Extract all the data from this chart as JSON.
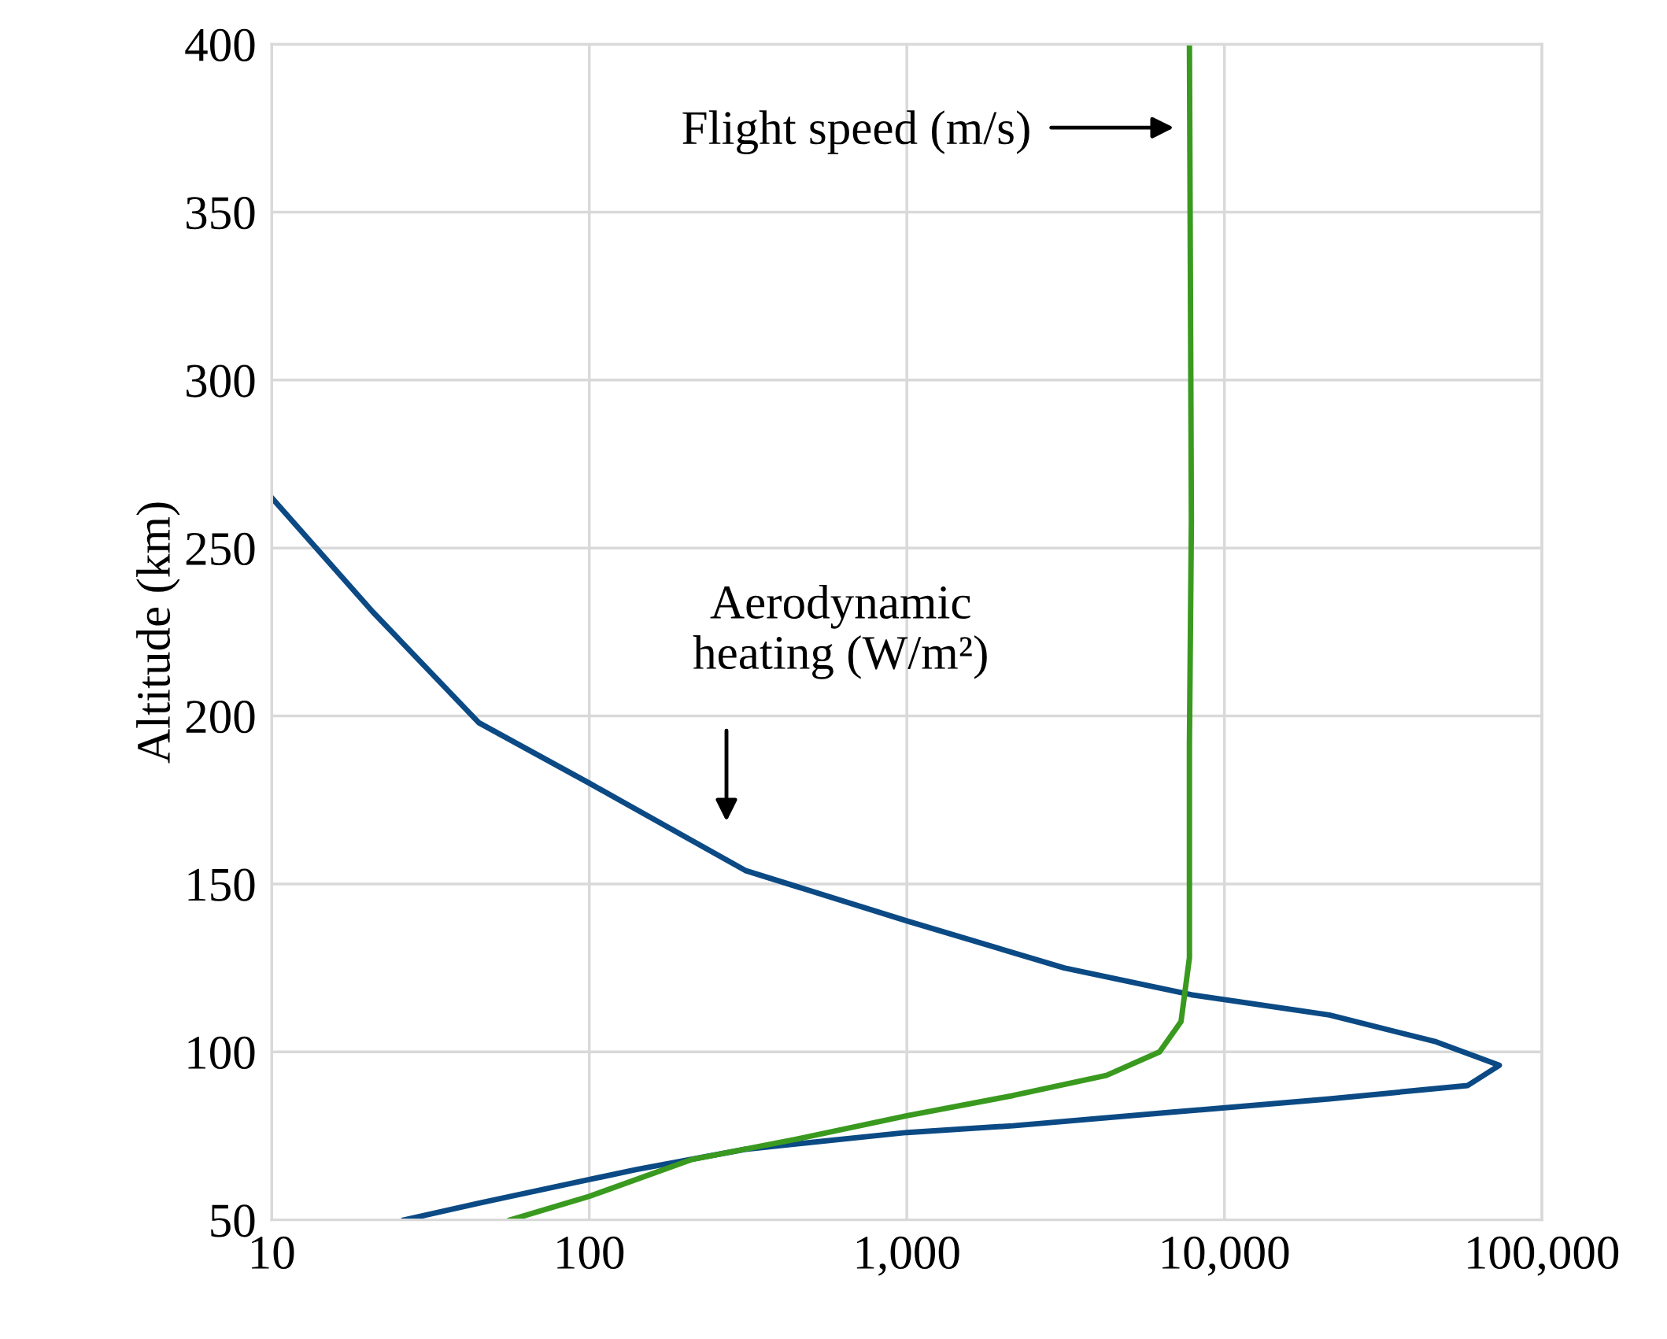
{
  "chart_data": {
    "type": "line",
    "ylabel": "Altitude (km)",
    "log": "x",
    "xlim": [
      10,
      100000
    ],
    "xticks": [
      10,
      100,
      {
        "value": 1000,
        "label": "1,000"
      },
      {
        "value": 10000,
        "label": "10,000"
      },
      {
        "value": 100000,
        "label": "100,000"
      }
    ],
    "ylim": [
      50,
      400
    ],
    "yticks": [
      50,
      100,
      150,
      200,
      250,
      300,
      350,
      400
    ],
    "grid": true,
    "marker": "none",
    "line_style": "solid",
    "series": [
      {
        "color": "#0b4a84",
        "x": [
          10,
          20.8,
          44.9,
          100,
          310,
          1000,
          3130,
          7870,
          21400,
          46400,
          73400,
          58400,
          21400,
          6750,
          2160,
          1000,
          310,
          141,
          100,
          45,
          26.2
        ],
        "values": [
          265,
          231,
          198,
          180,
          154,
          139,
          125,
          117,
          111,
          103,
          96,
          90,
          86,
          82,
          78,
          76,
          71,
          65,
          62,
          55,
          50
        ]
      },
      {
        "color": "#3a9a1f",
        "x": [
          56.5,
          100,
          211,
          449,
          1000,
          2160,
          4250,
          6250,
          7300,
          7760,
          7760,
          7870,
          7760
        ],
        "values": [
          50,
          57,
          68,
          74,
          81,
          87,
          93,
          100,
          109,
          128,
          192,
          258,
          400
        ]
      }
    ],
    "annotations": [
      "Flight speed (m/s)",
      "Aerodynamic\nheating (W/m²)"
    ]
  }
}
